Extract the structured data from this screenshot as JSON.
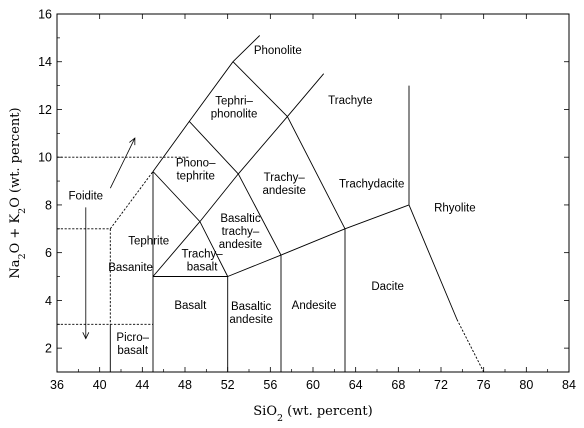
{
  "chart_data": {
    "type": "diagram",
    "xlabel_parts": [
      "SiO",
      "2",
      " (wt. percent)"
    ],
    "ylabel_parts": [
      "Na",
      "2",
      "O + K",
      "2",
      "O (wt. percent)"
    ],
    "xlim": [
      36,
      84
    ],
    "ylim": [
      1,
      16
    ],
    "xticks": [
      36,
      40,
      44,
      48,
      52,
      56,
      60,
      64,
      68,
      72,
      76,
      80,
      84
    ],
    "yticks": [
      2,
      4,
      6,
      8,
      10,
      12,
      14,
      16
    ],
    "boundaries": [
      {
        "name": "foidite-upper",
        "style": "dashed",
        "points": [
          [
            36,
            10
          ],
          [
            48.4,
            10
          ]
        ]
      },
      {
        "name": "foidite-lower-h",
        "style": "dashed",
        "points": [
          [
            36,
            7
          ],
          [
            41,
            7
          ]
        ]
      },
      {
        "name": "foidite-lower-v",
        "style": "dashed",
        "points": [
          [
            41,
            7
          ],
          [
            41,
            3
          ]
        ]
      },
      {
        "name": "foidite-diagonal",
        "style": "dashed",
        "points": [
          [
            41,
            7
          ],
          [
            45,
            9.4
          ]
        ]
      },
      {
        "name": "picro-top",
        "style": "dashed",
        "points": [
          [
            36,
            3
          ],
          [
            45,
            3
          ]
        ]
      },
      {
        "name": "picro-left",
        "style": "solid",
        "points": [
          [
            41,
            3
          ],
          [
            41,
            1
          ]
        ]
      },
      {
        "name": "left-edge-45",
        "style": "solid",
        "points": [
          [
            45,
            1
          ],
          [
            45,
            5
          ]
        ]
      },
      {
        "name": "basalt-top",
        "style": "solid",
        "points": [
          [
            45,
            5
          ],
          [
            52,
            5
          ]
        ]
      },
      {
        "name": "basalt-right",
        "style": "solid",
        "points": [
          [
            52,
            1
          ],
          [
            52,
            5
          ]
        ]
      },
      {
        "name": "basaltic-andesite-right",
        "style": "solid",
        "points": [
          [
            57,
            1
          ],
          [
            57,
            5.9
          ]
        ]
      },
      {
        "name": "andesite-right",
        "style": "solid",
        "points": [
          [
            63,
            1
          ],
          [
            63,
            7
          ]
        ]
      },
      {
        "name": "ab-chain",
        "style": "solid",
        "points": [
          [
            52,
            5
          ],
          [
            57,
            5.9
          ],
          [
            63,
            7
          ],
          [
            69,
            8
          ]
        ]
      },
      {
        "name": "dacite-right-solid",
        "style": "solid",
        "points": [
          [
            69,
            8
          ],
          [
            73.5,
            3.2
          ]
        ]
      },
      {
        "name": "dacite-right-dashed",
        "style": "dashed",
        "points": [
          [
            73.5,
            3.2
          ],
          [
            76,
            1
          ]
        ]
      },
      {
        "name": "rhyolite-left",
        "style": "solid",
        "points": [
          [
            69,
            8
          ],
          [
            69,
            13
          ]
        ]
      },
      {
        "name": "s1-s2-divider",
        "style": "solid",
        "points": [
          [
            45,
            5
          ],
          [
            45,
            9.4
          ],
          [
            48.4,
            11.5
          ],
          [
            52.5,
            14
          ],
          [
            55,
            15.1
          ]
        ]
      },
      {
        "name": "u1-top",
        "style": "solid",
        "points": [
          [
            45,
            9.4
          ],
          [
            49.4,
            7.3
          ],
          [
            52,
            5
          ]
        ]
      },
      {
        "name": "s2-top",
        "style": "solid",
        "points": [
          [
            49.4,
            7.3
          ],
          [
            53,
            9.3
          ],
          [
            57.6,
            11.7
          ],
          [
            61,
            13.5
          ]
        ]
      },
      {
        "name": "u2-top",
        "style": "solid",
        "points": [
          [
            48.4,
            11.5
          ],
          [
            53,
            9.3
          ]
        ]
      },
      {
        "name": "s3-left",
        "style": "solid",
        "points": [
          [
            57,
            5.9
          ],
          [
            53,
            9.3
          ]
        ]
      },
      {
        "name": "u3-top",
        "style": "solid",
        "points": [
          [
            52.5,
            14
          ],
          [
            57.6,
            11.7
          ]
        ]
      },
      {
        "name": "trachyte-divider",
        "style": "solid",
        "points": [
          [
            57.6,
            11.7
          ],
          [
            63,
            7
          ]
        ]
      },
      {
        "name": "trachy-basalt-lower",
        "style": "solid",
        "points": [
          [
            49.4,
            7.3
          ],
          [
            45,
            5
          ]
        ]
      }
    ],
    "arrows": [
      {
        "name": "arrow-up-right",
        "from": [
          41,
          8.7
        ],
        "to": [
          43.3,
          10.8
        ]
      },
      {
        "name": "arrow-down",
        "from": [
          38.7,
          7.9
        ],
        "to": [
          38.7,
          2.4
        ]
      }
    ],
    "labels": [
      {
        "name": "Phonolite",
        "lines": [
          "Phonolite"
        ],
        "x": 56.7,
        "y": 14.5
      },
      {
        "name": "Tephriphonolite",
        "lines": [
          "Tephri–",
          "phonolite"
        ],
        "x": 52.6,
        "y": 12.1
      },
      {
        "name": "Trachyte",
        "lines": [
          "Trachyte"
        ],
        "x": 63.5,
        "y": 12.4
      },
      {
        "name": "Phonotephrite",
        "lines": [
          "Phono–",
          "tephrite"
        ],
        "x": 49.0,
        "y": 9.5
      },
      {
        "name": "Trachyandesite",
        "lines": [
          "Trachy–",
          "andesite"
        ],
        "x": 57.3,
        "y": 8.9
      },
      {
        "name": "Trachydacite",
        "lines": [
          "Trachydacite"
        ],
        "x": 65.5,
        "y": 8.9
      },
      {
        "name": "Foidite",
        "lines": [
          "Foidite"
        ],
        "x": 38.7,
        "y": 8.4
      },
      {
        "name": "Rhyolite",
        "lines": [
          "Rhyolite"
        ],
        "x": 73.3,
        "y": 7.9
      },
      {
        "name": "Basaltic trachyandesite",
        "lines": [
          "Basaltic",
          "trachy–",
          "andesite"
        ],
        "x": 53.2,
        "y": 6.9
      },
      {
        "name": "Tephrite",
        "lines": [
          "Tephrite"
        ],
        "x": 44.6,
        "y": 6.5
      },
      {
        "name": "Trachybasalt",
        "lines": [
          "Trachy–",
          "basalt"
        ],
        "x": 49.6,
        "y": 5.7
      },
      {
        "name": "Basanite",
        "lines": [
          "Basanite"
        ],
        "x": 42.9,
        "y": 5.4
      },
      {
        "name": "Basaltic andesite",
        "lines": [
          "Basaltic",
          "andesite"
        ],
        "x": 54.2,
        "y": 3.5
      },
      {
        "name": "Basalt",
        "lines": [
          "Basalt"
        ],
        "x": 48.5,
        "y": 3.8
      },
      {
        "name": "Andesite",
        "lines": [
          "Andesite"
        ],
        "x": 60.1,
        "y": 3.8
      },
      {
        "name": "Dacite",
        "lines": [
          "Dacite"
        ],
        "x": 67.0,
        "y": 4.6
      },
      {
        "name": "Picrobasalt",
        "lines": [
          "Picro–",
          "basalt"
        ],
        "x": 43.1,
        "y": 2.2
      }
    ]
  }
}
